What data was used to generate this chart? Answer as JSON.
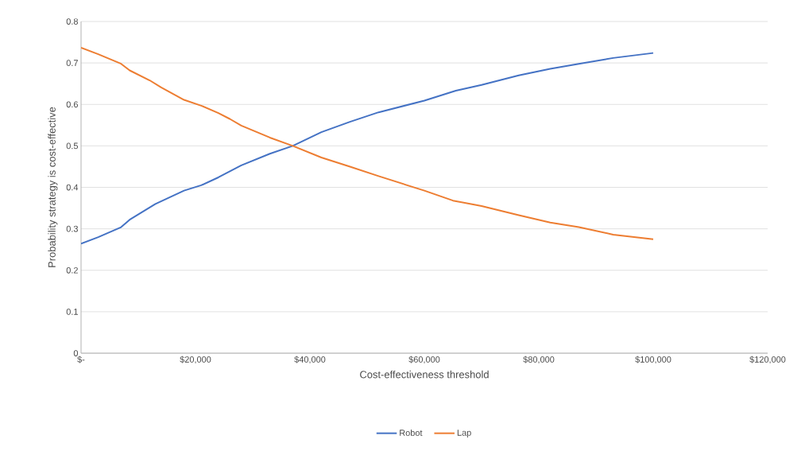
{
  "chart_data": {
    "type": "line",
    "xlabel": "Cost-effectiveness threshold",
    "ylabel": "Probability strategy is cost-effective",
    "xlim": [
      0,
      120000
    ],
    "ylim": [
      0,
      0.8
    ],
    "xticks": [
      {
        "value": 0,
        "label": "$-"
      },
      {
        "value": 20000,
        "label": "$20,000"
      },
      {
        "value": 40000,
        "label": "$40,000"
      },
      {
        "value": 60000,
        "label": "$60,000"
      },
      {
        "value": 80000,
        "label": "$80,000"
      },
      {
        "value": 100000,
        "label": "$100,000"
      },
      {
        "value": 120000,
        "label": "$120,000"
      }
    ],
    "yticks": [
      0,
      0.1,
      0.2,
      0.3,
      0.4,
      0.5,
      0.6,
      0.7,
      0.8
    ],
    "grid": "y",
    "legend": "bottom",
    "marker": "none",
    "line_style": "solid",
    "series": [
      {
        "name": "Robot",
        "color": "#4472c4",
        "x": [
          0,
          3000,
          7000,
          8500,
          13000,
          18000,
          21000,
          24000,
          28000,
          33000,
          37000,
          42000,
          47000,
          52000,
          60000,
          65500,
          70000,
          76500,
          82000,
          87000,
          93000,
          100000
        ],
        "values": [
          0.264,
          0.28,
          0.304,
          0.322,
          0.36,
          0.392,
          0.405,
          0.424,
          0.453,
          0.481,
          0.5,
          0.533,
          0.558,
          0.581,
          0.609,
          0.633,
          0.647,
          0.67,
          0.686,
          0.698,
          0.712,
          0.724
        ]
      },
      {
        "name": "Lap",
        "color": "#ed7d31",
        "x": [
          0,
          3000,
          7000,
          8500,
          12000,
          14000,
          18000,
          21000,
          24000,
          26000,
          28000,
          33000,
          37000,
          42000,
          47000,
          52000,
          60000,
          65000,
          70000,
          76500,
          82000,
          87000,
          93000,
          100000
        ],
        "values": [
          0.737,
          0.721,
          0.698,
          0.682,
          0.658,
          0.641,
          0.611,
          0.597,
          0.579,
          0.565,
          0.549,
          0.52,
          0.5,
          0.472,
          0.45,
          0.427,
          0.392,
          0.368,
          0.355,
          0.333,
          0.315,
          0.304,
          0.286,
          0.275
        ]
      }
    ]
  }
}
